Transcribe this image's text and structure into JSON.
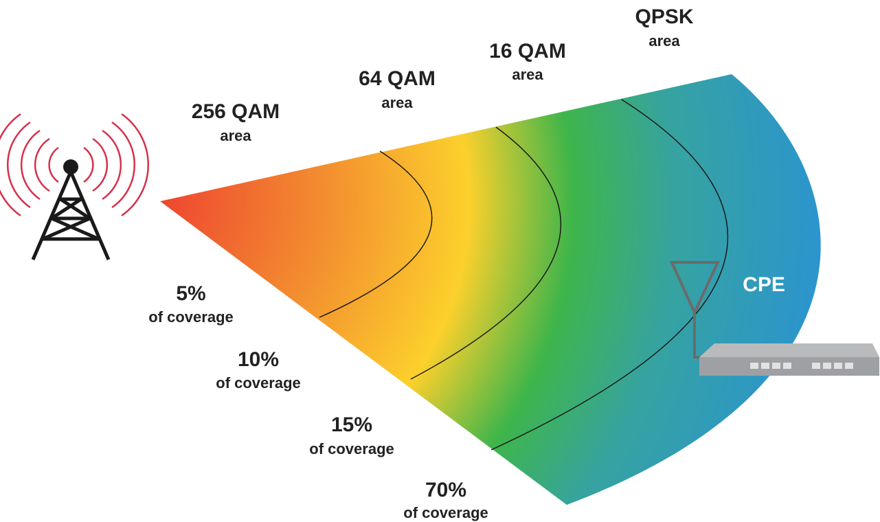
{
  "zones": [
    {
      "name": "256 QAM",
      "area": "area",
      "coverage": "5%",
      "coverage_note": "of coverage"
    },
    {
      "name": "64 QAM",
      "area": "area",
      "coverage": "10%",
      "coverage_note": "of coverage"
    },
    {
      "name": "16 QAM",
      "area": "area",
      "coverage": "15%",
      "coverage_note": "of coverage"
    },
    {
      "name": "QPSK",
      "area": "area",
      "coverage": "70%",
      "coverage_note": "of coverage"
    }
  ],
  "device_label": "CPE"
}
